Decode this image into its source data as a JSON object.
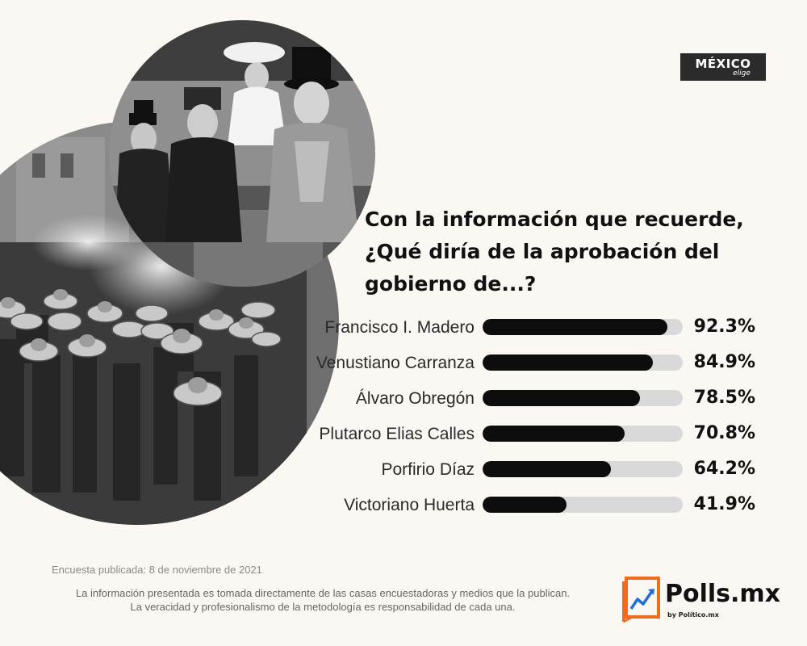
{
  "badge": {
    "line1": "MÉXICO",
    "line2": "elige"
  },
  "chart_data": {
    "type": "bar",
    "orientation": "horizontal",
    "title": "Con la información que recuerde, ¿Qué diría de la aprobación del gobierno de...?",
    "categories": [
      "Francisco I. Madero",
      "Venustiano Carranza",
      "Álvaro Obregón",
      "Plutarco Elias Calles",
      "Porfirio Díaz",
      "Victoriano Huerta"
    ],
    "values": [
      92.3,
      84.9,
      78.5,
      70.8,
      64.2,
      41.9
    ],
    "value_labels": [
      "92.3%",
      "84.9%",
      "78.5%",
      "70.8%",
      "64.2%",
      "41.9%"
    ],
    "xlim": [
      0,
      100
    ],
    "grid": false
  },
  "footer": {
    "survey_date": "Encuesta publicada: 8 de noviembre de 2021",
    "disclaimer_line1": "La información presentada es tomada directamente de las casas encuestadoras y medios que la publican.",
    "disclaimer_line2": "La veracidad y profesionalismo de la metodología es responsabilidad de cada una."
  },
  "logo": {
    "name": "Polls.mx",
    "byline": "by Político.mx"
  },
  "colors": {
    "background": "#fbf8f4",
    "bar_fill": "#0d0d0d",
    "bar_track": "#d9d9d9",
    "logo_orange": "#f26a1b"
  }
}
